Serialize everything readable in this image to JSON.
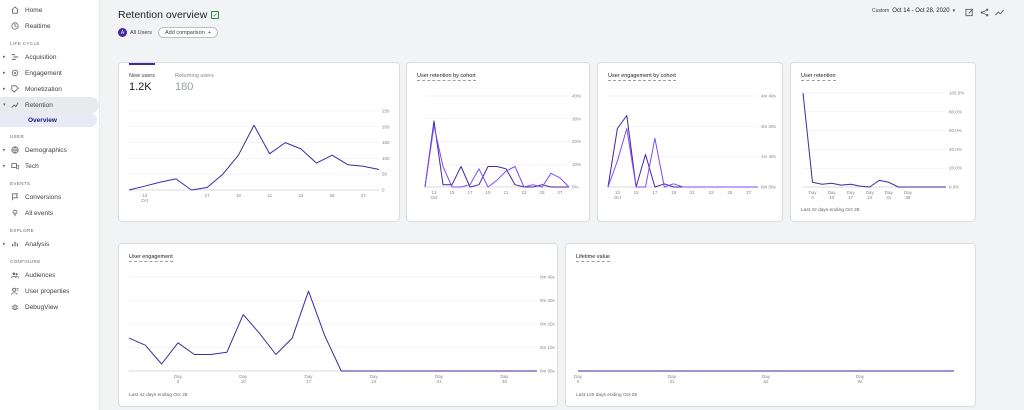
{
  "sidebar": {
    "items_top": [
      {
        "name": "home",
        "label": "Home",
        "icon": "home-icon"
      },
      {
        "name": "realtime",
        "label": "Realtime",
        "icon": "clock-icon"
      }
    ],
    "sections": [
      {
        "label": "LIFE CYCLE",
        "items": [
          {
            "name": "acquisition",
            "label": "Acquisition",
            "icon": "acquisition-icon"
          },
          {
            "name": "engagement",
            "label": "Engagement",
            "icon": "engagement-icon"
          },
          {
            "name": "monetization",
            "label": "Monetization",
            "icon": "money-icon"
          },
          {
            "name": "retention",
            "label": "Retention",
            "icon": "retention-icon"
          }
        ]
      },
      {
        "label": "USER",
        "items": [
          {
            "name": "demographics",
            "label": "Demographics",
            "icon": "globe-icon"
          },
          {
            "name": "tech",
            "label": "Tech",
            "icon": "devices-icon"
          }
        ]
      },
      {
        "label": "EVENTS",
        "items": [
          {
            "name": "conversions",
            "label": "Conversions",
            "icon": "flag-icon"
          },
          {
            "name": "all-events",
            "label": "All events",
            "icon": "touch-icon"
          }
        ]
      },
      {
        "label": "EXPLORE",
        "items": [
          {
            "name": "analysis",
            "label": "Analysis",
            "icon": "analysis-icon"
          }
        ]
      },
      {
        "label": "CONFIGURE",
        "items": [
          {
            "name": "audiences",
            "label": "Audiences",
            "icon": "audience-icon"
          },
          {
            "name": "user-properties",
            "label": "User properties",
            "icon": "person-icon"
          },
          {
            "name": "debugview",
            "label": "DebugView",
            "icon": "debug-icon"
          }
        ]
      }
    ],
    "retention_sub": "Overview"
  },
  "header": {
    "title": "Retention overview",
    "all_users_badge": "A",
    "all_users": "All Users",
    "add_comparison": "Add comparison",
    "date_custom": "Custom",
    "date_range": "Oct 14 - Oct 28, 2020"
  },
  "cards": {
    "users": {
      "tab1_label": "New users",
      "tab1_value": "1.2K",
      "tab2_label": "Returning users",
      "tab2_value": "180"
    },
    "cohort": {
      "title": "User retention by cohort"
    },
    "engagement_cohort": {
      "title": "User engagement by cohort"
    },
    "retention": {
      "title": "User retention",
      "footer": "Last 42 days ending Oct 28"
    },
    "user_engagement": {
      "title": "User engagement",
      "footer": "Last 42 days ending Oct 28"
    },
    "lifetime": {
      "title": "Lifetime value",
      "footer": "Last 120 days ending Oct 28"
    }
  },
  "colors": {
    "line": "#4527a0",
    "line_light": "#7c4dff",
    "grid": "#e8eaed"
  },
  "chart_data": [
    {
      "id": "new-users",
      "type": "line",
      "x": [
        "Oct 12",
        "Oct 13",
        "Oct 14",
        "Oct 15",
        "Oct 16",
        "Oct 17",
        "Oct 18",
        "Oct 19",
        "Oct 20",
        "Oct 21",
        "Oct 22",
        "Oct 23",
        "Oct 24",
        "Oct 25",
        "Oct 26",
        "Oct 27",
        "Oct 28"
      ],
      "values": [
        0,
        12,
        25,
        35,
        0,
        8,
        50,
        110,
        205,
        115,
        150,
        130,
        85,
        110,
        80,
        75,
        65
      ],
      "xticks": [
        {
          "at": 1,
          "label": "13",
          "sub": "Oct"
        },
        {
          "at": 5,
          "label": "17"
        },
        {
          "at": 7,
          "label": "19"
        },
        {
          "at": 9,
          "label": "21"
        },
        {
          "at": 11,
          "label": "23"
        },
        {
          "at": 13,
          "label": "25"
        },
        {
          "at": 15,
          "label": "27"
        }
      ],
      "yticks": [
        "250",
        "200",
        "150",
        "100",
        "50",
        "0"
      ],
      "ylim": [
        0,
        250
      ]
    },
    {
      "id": "retention-by-cohort",
      "type": "line",
      "series": [
        {
          "values": [
            0,
            29,
            1,
            1,
            9,
            0,
            1,
            9,
            9,
            8,
            1,
            0,
            0,
            1,
            0,
            0,
            0
          ]
        },
        {
          "values": [
            0,
            27,
            9,
            0,
            0,
            1,
            8,
            0,
            3,
            7,
            9,
            0,
            1,
            0,
            6,
            4,
            0
          ]
        }
      ],
      "xticks": [
        {
          "at": 1,
          "label": "13",
          "sub": "Oct"
        },
        {
          "at": 3,
          "label": "15"
        },
        {
          "at": 5,
          "label": "17"
        },
        {
          "at": 7,
          "label": "19"
        },
        {
          "at": 9,
          "label": "21"
        },
        {
          "at": 11,
          "label": "23"
        },
        {
          "at": 13,
          "label": "25"
        },
        {
          "at": 15,
          "label": "27"
        }
      ],
      "yticks": [
        "40%",
        "30%",
        "20%",
        "10%",
        "0%"
      ],
      "ylim": [
        0,
        40
      ]
    },
    {
      "id": "engagement-by-cohort",
      "type": "line",
      "series": [
        {
          "values": [
            0,
            180,
            220,
            0,
            100,
            0,
            10,
            0,
            0,
            0,
            0,
            0,
            0,
            0,
            0,
            0,
            0
          ]
        },
        {
          "values": [
            0,
            80,
            180,
            0,
            0,
            150,
            0,
            10,
            0,
            0,
            0,
            0,
            0,
            0,
            0,
            0,
            0
          ]
        }
      ],
      "xticks": [
        {
          "at": 1,
          "label": "13",
          "sub": "Oct"
        },
        {
          "at": 3,
          "label": "15"
        },
        {
          "at": 5,
          "label": "17"
        },
        {
          "at": 7,
          "label": "19"
        },
        {
          "at": 9,
          "label": "21"
        },
        {
          "at": 11,
          "label": "23"
        },
        {
          "at": 13,
          "label": "25"
        },
        {
          "at": 15,
          "label": "27"
        }
      ],
      "yticks": [
        "4m 40s",
        "3m 00s",
        "1m 40s",
        "0m 00s"
      ],
      "ylim": [
        0,
        280
      ]
    },
    {
      "id": "user-retention",
      "type": "line",
      "values": [
        100,
        5,
        3,
        4,
        2,
        3,
        1,
        0,
        7,
        5,
        0,
        0,
        0,
        0,
        0,
        0
      ],
      "xticks": [
        {
          "at": 1,
          "label": "Day",
          "sub": "3"
        },
        {
          "at": 3,
          "label": "Day",
          "sub": "10"
        },
        {
          "at": 5,
          "label": "Day",
          "sub": "17"
        },
        {
          "at": 7,
          "label": "Day",
          "sub": "24"
        },
        {
          "at": 9,
          "label": "Day",
          "sub": "31"
        },
        {
          "at": 11,
          "label": "Day",
          "sub": "38"
        }
      ],
      "yticks": [
        "100.0%",
        "80.0%",
        "60.0%",
        "40.0%",
        "20.0%",
        "0.0%"
      ],
      "ylim": [
        0,
        100
      ]
    },
    {
      "id": "user-engagement",
      "type": "line",
      "values": [
        28,
        22,
        6,
        24,
        14,
        14,
        16,
        48,
        32,
        14,
        28,
        68,
        30,
        0,
        0,
        0,
        0,
        0,
        0,
        0,
        0,
        0,
        0,
        0,
        0,
        0
      ],
      "xticks": [
        {
          "at": 3,
          "label": "Day",
          "sub": "3"
        },
        {
          "at": 7,
          "label": "Day",
          "sub": "10"
        },
        {
          "at": 11,
          "label": "Day",
          "sub": "17"
        },
        {
          "at": 15,
          "label": "Day",
          "sub": "24"
        },
        {
          "at": 19,
          "label": "Day",
          "sub": "31"
        },
        {
          "at": 23,
          "label": "Day",
          "sub": "38"
        }
      ],
      "yticks": [
        "0m 40s",
        "0m 30s",
        "0m 20s",
        "0m 10s",
        "0m 00s"
      ],
      "ylim": [
        0,
        80
      ]
    },
    {
      "id": "lifetime-value",
      "type": "line",
      "values": [
        0,
        0,
        0,
        0,
        0
      ],
      "xticks": [
        {
          "at": 0,
          "label": "Day",
          "sub": "0"
        },
        {
          "at": 1,
          "label": "Day",
          "sub": "31"
        },
        {
          "at": 2,
          "label": "Day",
          "sub": "62"
        },
        {
          "at": 3,
          "label": "Day",
          "sub": "92"
        }
      ],
      "yticks": [],
      "ylim": [
        0,
        1
      ]
    }
  ]
}
